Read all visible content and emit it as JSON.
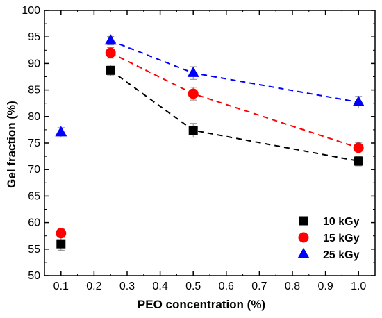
{
  "chart_data": {
    "type": "scatter",
    "xlabel": "PEO concentration (%)",
    "ylabel": "Gel fraction (%)",
    "xlim": [
      0.05,
      1.05
    ],
    "ylim": [
      50,
      100
    ],
    "xticks": [
      "0.1",
      "0.2",
      "0.3",
      "0.4",
      "0.5",
      "0.6",
      "0.7",
      "0.8",
      "0.9",
      "1.0"
    ],
    "yticks": [
      "50",
      "55",
      "60",
      "65",
      "70",
      "75",
      "80",
      "85",
      "90",
      "95",
      "100"
    ],
    "legend_position": "bottom-right",
    "grid": false,
    "series": [
      {
        "name": "10 kGy",
        "marker": "square",
        "color": "#000000",
        "points": [
          {
            "x": 0.1,
            "y": 56.0,
            "err": 1.2
          },
          {
            "x": 0.25,
            "y": 88.7,
            "err": 1.0
          },
          {
            "x": 0.5,
            "y": 77.4,
            "err": 1.3
          },
          {
            "x": 1.0,
            "y": 71.6,
            "err": 0.9
          }
        ],
        "trend_from": 0.25
      },
      {
        "name": "15 kGy",
        "marker": "circle",
        "color": "#ff0000",
        "points": [
          {
            "x": 0.1,
            "y": 58.0,
            "err": 0.8
          },
          {
            "x": 0.25,
            "y": 92.0,
            "err": 1.0
          },
          {
            "x": 0.5,
            "y": 84.3,
            "err": 1.2
          },
          {
            "x": 1.0,
            "y": 74.1,
            "err": 1.0
          }
        ],
        "trend_from": 0.25
      },
      {
        "name": "25 kGy",
        "marker": "triangle",
        "color": "#0000ff",
        "points": [
          {
            "x": 0.1,
            "y": 77.0,
            "err": 0.9
          },
          {
            "x": 0.25,
            "y": 94.3,
            "err": 0.8
          },
          {
            "x": 0.5,
            "y": 88.2,
            "err": 1.2
          },
          {
            "x": 1.0,
            "y": 82.7,
            "err": 1.1
          }
        ],
        "trend_from": 0.25
      }
    ]
  }
}
